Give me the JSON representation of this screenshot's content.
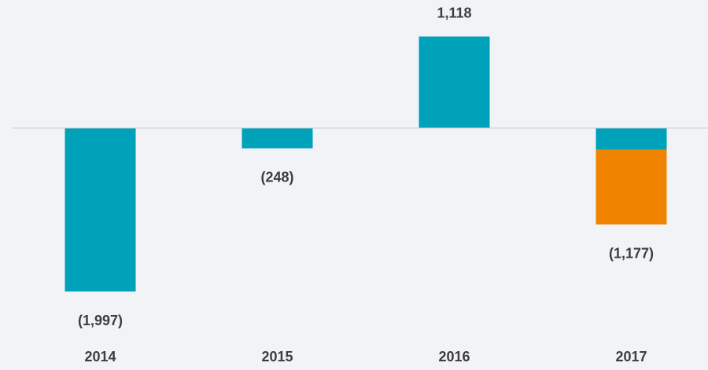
{
  "chart_data": {
    "type": "bar",
    "stacked": true,
    "categories": [
      "2014",
      "2015",
      "2016",
      "2017"
    ],
    "series": [
      {
        "color": "#00a2b9",
        "values": [
          -1997,
          -248,
          1118,
          -265
        ]
      },
      {
        "color": "#f08300",
        "values": [
          null,
          null,
          null,
          -912
        ]
      }
    ],
    "totals": [
      -1997,
      -248,
      1118,
      -1177
    ],
    "total_labels": [
      "(1,997)",
      "(248)",
      "1,118",
      "(1,177)"
    ]
  }
}
